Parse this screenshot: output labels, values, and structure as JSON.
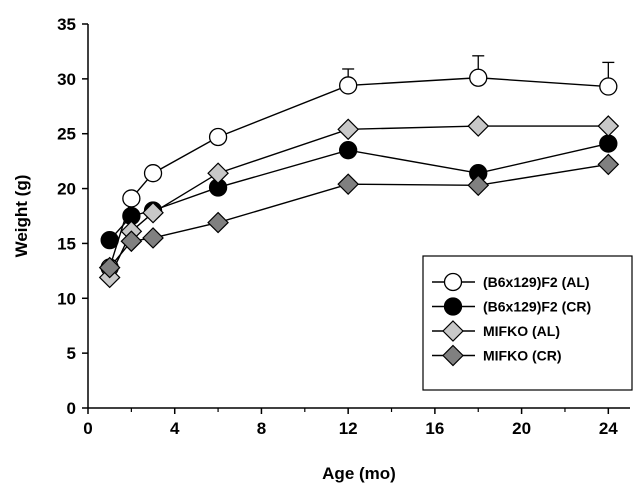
{
  "chart_data": {
    "type": "line",
    "xlabel": "Age (mo)",
    "ylabel": "Weight (g)",
    "xlim": [
      0,
      25
    ],
    "ylim": [
      0,
      35
    ],
    "xticks": [
      0,
      4,
      8,
      12,
      16,
      20,
      24
    ],
    "yticks": [
      0,
      5,
      10,
      15,
      20,
      25,
      30,
      35
    ],
    "grid": false,
    "legend_position": "bottom-right",
    "error_bars": "upper error bars on (B6x129)F2 (AL) at 12, 18 and 24 months",
    "series": [
      {
        "name": "(B6x129)F2 (AL)",
        "marker": "circle",
        "marker_fill": "#ffffff",
        "x": [
          1,
          2,
          3,
          6,
          12,
          18,
          24
        ],
        "values": [
          12.8,
          19.1,
          21.4,
          24.7,
          29.4,
          30.1,
          29.3
        ],
        "error_upper": [
          null,
          null,
          null,
          null,
          1.5,
          2.0,
          2.2
        ]
      },
      {
        "name": "(B6x129)F2 (CR)",
        "marker": "circle",
        "marker_fill": "#000000",
        "x": [
          1,
          2,
          3,
          6,
          12,
          18,
          24
        ],
        "values": [
          15.3,
          17.5,
          18.0,
          20.1,
          23.5,
          21.4,
          24.1
        ],
        "error_upper": [
          null,
          null,
          null,
          null,
          null,
          null,
          null
        ]
      },
      {
        "name": "MIFKO (AL)",
        "marker": "diamond",
        "marker_fill": "#c8c8c8",
        "x": [
          1,
          2,
          3,
          6,
          12,
          18,
          24
        ],
        "values": [
          11.9,
          16.1,
          17.8,
          21.4,
          25.4,
          25.7,
          25.7
        ],
        "error_upper": [
          null,
          null,
          null,
          null,
          null,
          null,
          null
        ]
      },
      {
        "name": "MIFKO (CR)",
        "marker": "diamond",
        "marker_fill": "#808080",
        "x": [
          1,
          2,
          3,
          6,
          12,
          18,
          24
        ],
        "values": [
          12.8,
          15.2,
          15.5,
          16.9,
          20.4,
          20.3,
          22.2
        ],
        "error_upper": [
          null,
          null,
          null,
          null,
          null,
          null,
          null
        ]
      }
    ]
  }
}
